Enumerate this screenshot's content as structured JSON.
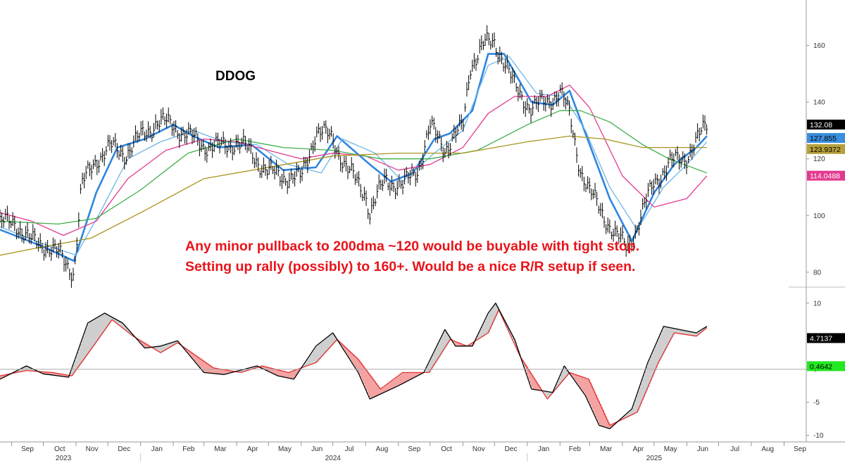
{
  "chart_data": {
    "type": "line",
    "title": "DDOG",
    "annotations": [
      "Any minor pullback to 200dma ~120 would be buyable with tight stop.",
      "Setting up rally (possibly) to 160+. Would be a nice R/R setup if seen."
    ],
    "x_months": [
      "Sep",
      "Oct",
      "Nov",
      "Dec",
      "Jan",
      "Feb",
      "Mar",
      "Apr",
      "May",
      "Jun",
      "Jul",
      "Aug",
      "Sep",
      "Oct",
      "Nov",
      "Dec",
      "Jan",
      "Feb",
      "Mar",
      "Apr",
      "May",
      "Jun",
      "Jul",
      "Aug",
      "Sep"
    ],
    "x_years": [
      "2023",
      "2024",
      "2025"
    ],
    "grid": false,
    "panels": [
      {
        "name": "price",
        "ylim": [
          76,
          176
        ],
        "y_ticks": [
          80,
          100,
          120,
          140,
          160
        ],
        "series": [
          {
            "type": "ohlc_close",
            "color": "#000000",
            "x": [
              "2023-08-21",
              "2023-09-04",
              "2023-09-18",
              "2023-10-02",
              "2023-10-16",
              "2023-10-30",
              "2023-11-06",
              "2023-11-20",
              "2023-12-04",
              "2023-12-18",
              "2024-01-02",
              "2024-01-16",
              "2024-02-01",
              "2024-02-15",
              "2024-03-01",
              "2024-03-15",
              "2024-04-01",
              "2024-04-15",
              "2024-05-01",
              "2024-05-15",
              "2024-06-01",
              "2024-06-15",
              "2024-07-01",
              "2024-07-15",
              "2024-08-01",
              "2024-08-05",
              "2024-08-20",
              "2024-09-05",
              "2024-09-20",
              "2024-10-01",
              "2024-10-15",
              "2024-11-01",
              "2024-11-08",
              "2024-11-20",
              "2024-12-01",
              "2024-12-10",
              "2024-12-20",
              "2025-01-05",
              "2025-01-20",
              "2025-02-01",
              "2025-02-10",
              "2025-02-20",
              "2025-03-01",
              "2025-03-15",
              "2025-03-25",
              "2025-04-05",
              "2025-04-15",
              "2025-05-01",
              "2025-05-15",
              "2025-06-01",
              "2025-06-10",
              "2025-06-20"
            ],
            "values": [
              97,
              98,
              91,
              90,
              86,
              80,
              110,
              120,
              124,
              122,
              128,
              133,
              132,
              128,
              125,
              124,
              126,
              122,
              115,
              114,
              113,
              130,
              127,
              116,
              108,
              101,
              113,
              110,
              117,
              131,
              124,
              131,
              153,
              160,
              161,
              155,
              145,
              138,
              140,
              144,
              135,
              117,
              108,
              100,
              93,
              89,
              96,
              112,
              118,
              121,
              126,
              132
            ]
          },
          {
            "type": "line",
            "color": "#2e86e0",
            "x": [
              "2023-08-21",
              "2023-10-01",
              "2023-10-30",
              "2023-11-20",
              "2023-12-10",
              "2024-01-05",
              "2024-02-01",
              "2024-02-20",
              "2024-03-15",
              "2024-04-15",
              "2024-05-15",
              "2024-06-15",
              "2024-07-05",
              "2024-08-05",
              "2024-08-25",
              "2024-09-15",
              "2024-10-05",
              "2024-10-20",
              "2024-11-10",
              "2024-11-25",
              "2024-12-10",
              "2025-01-05",
              "2025-01-25",
              "2025-02-10",
              "2025-03-01",
              "2025-03-20",
              "2025-04-10",
              "2025-05-01",
              "2025-05-20",
              "2025-06-10",
              "2025-06-20"
            ],
            "values": [
              95,
              89,
              84,
              108,
              124,
              127,
              132,
              128,
              124,
              125,
              116,
              117,
              128,
              118,
              112,
              115,
              127,
              129,
              137,
              157,
              157,
              140,
              139,
              144,
              125,
              106,
              91,
              108,
              118,
              124,
              128
            ]
          },
          {
            "type": "line",
            "color": "#6fb6e8",
            "x": [
              "2023-08-21",
              "2023-10-01",
              "2023-11-01",
              "2023-11-25",
              "2023-12-20",
              "2024-01-20",
              "2024-02-20",
              "2024-03-20",
              "2024-04-20",
              "2024-05-20",
              "2024-06-20",
              "2024-07-10",
              "2024-08-10",
              "2024-09-05",
              "2024-10-05",
              "2024-11-01",
              "2024-11-25",
              "2024-12-15",
              "2025-01-10",
              "2025-02-05",
              "2025-02-25",
              "2025-03-20",
              "2025-04-15",
              "2025-05-10",
              "2025-06-01",
              "2025-06-20"
            ],
            "values": [
              96,
              90,
              86,
              102,
              120,
              126,
              130,
              126,
              125,
              118,
              115,
              127,
              122,
              112,
              122,
              130,
              153,
              156,
              143,
              142,
              130,
              110,
              95,
              110,
              118,
              126
            ]
          },
          {
            "type": "line",
            "color": "#e33a8f",
            "x": [
              "2023-08-21",
              "2023-09-20",
              "2023-10-20",
              "2023-11-20",
              "2023-12-20",
              "2024-01-25",
              "2024-03-01",
              "2024-04-01",
              "2024-05-01",
              "2024-06-01",
              "2024-07-01",
              "2024-08-01",
              "2024-09-01",
              "2024-10-01",
              "2024-11-01",
              "2024-11-25",
              "2024-12-20",
              "2025-01-20",
              "2025-02-10",
              "2025-03-01",
              "2025-04-01",
              "2025-05-01",
              "2025-06-01",
              "2025-06-20"
            ],
            "values": [
              101,
              98,
              93,
              98,
              113,
              123,
              127,
              126,
              123,
              120,
              122,
              121,
              116,
              118,
              124,
              136,
              142,
              142,
              146,
              138,
              114,
              103,
              106,
              114
            ]
          },
          {
            "type": "line",
            "color": "#3fae49",
            "x": [
              "2023-08-21",
              "2023-10-15",
              "2023-11-20",
              "2024-01-01",
              "2024-02-15",
              "2024-04-01",
              "2024-05-15",
              "2024-07-01",
              "2024-08-15",
              "2024-10-01",
              "2024-11-15",
              "2025-01-01",
              "2025-02-01",
              "2025-02-20",
              "2025-03-20",
              "2025-04-20",
              "2025-05-15",
              "2025-06-20"
            ],
            "values": [
              98,
              97,
              99,
              109,
              122,
              127,
              124,
              123,
              120,
              120,
              123,
              132,
              137,
              137,
              133,
              125,
              120,
              115
            ]
          },
          {
            "type": "line",
            "color": "#a89520",
            "x": [
              "2023-08-21",
              "2023-10-01",
              "2023-11-15",
              "2024-01-01",
              "2024-03-01",
              "2024-05-01",
              "2024-07-01",
              "2024-09-01",
              "2024-11-01",
              "2025-01-01",
              "2025-02-10",
              "2025-03-15",
              "2025-04-20",
              "2025-06-20"
            ],
            "values": [
              86,
              89,
              92,
              101,
              113,
              117,
              121,
              122,
              122,
              126,
              128,
              127,
              124,
              124
            ]
          }
        ],
        "last_value_tags": [
          {
            "label": "132.08",
            "bg": "#000000",
            "fg": "#ffffff",
            "value": 132.08
          },
          {
            "label": "127.855",
            "bg": "#3a8ede",
            "fg": "#000000",
            "value": 127.855
          },
          {
            "label": "123.9372",
            "bg": "#b5a03a",
            "fg": "#000000",
            "value": 123.9372
          },
          {
            "label": "114.0488",
            "bg": "#e33a8f",
            "fg": "#ffffff",
            "value": 114.0488
          }
        ]
      },
      {
        "name": "oscillator",
        "ylim": [
          -11,
          12
        ],
        "y_ticks": [
          -10,
          -5,
          0,
          5,
          10
        ],
        "reference_line": 0,
        "series": [
          {
            "type": "line",
            "color": "#000000",
            "x": [
              "2023-08-21",
              "2023-09-15",
              "2023-10-01",
              "2023-10-25",
              "2023-11-12",
              "2023-11-28",
              "2023-12-15",
              "2024-01-05",
              "2024-01-20",
              "2024-02-05",
              "2024-03-01",
              "2024-03-20",
              "2024-04-20",
              "2024-05-10",
              "2024-05-25",
              "2024-06-15",
              "2024-07-01",
              "2024-07-25",
              "2024-08-05",
              "2024-09-01",
              "2024-09-25",
              "2024-10-15",
              "2024-10-25",
              "2024-11-10",
              "2024-11-25",
              "2024-12-02",
              "2024-12-20",
              "2025-01-05",
              "2025-01-25",
              "2025-02-05",
              "2025-02-25",
              "2025-03-10",
              "2025-03-20",
              "2025-04-10",
              "2025-04-25",
              "2025-05-10",
              "2025-05-25",
              "2025-06-10",
              "2025-06-20"
            ],
            "values": [
              -1.5,
              0.5,
              -0.7,
              -1.2,
              7.0,
              8.5,
              7.0,
              3.2,
              3.5,
              4.3,
              -0.5,
              -0.8,
              0.5,
              -1.0,
              -1.5,
              3.5,
              5.5,
              -0.5,
              -4.5,
              -2.5,
              -0.5,
              6.0,
              3.5,
              3.5,
              8.5,
              10.0,
              4.5,
              -3.0,
              -3.5,
              0.5,
              -4.0,
              -8.5,
              -9.0,
              -6.0,
              1.0,
              6.5,
              6.0,
              5.5,
              6.5
            ]
          },
          {
            "type": "line",
            "color": "#e33030",
            "x": [
              "2023-08-21",
              "2023-09-15",
              "2023-10-10",
              "2023-10-28",
              "2023-11-15",
              "2023-12-05",
              "2023-12-25",
              "2024-01-20",
              "2024-02-05",
              "2024-03-10",
              "2024-04-05",
              "2024-04-25",
              "2024-05-20",
              "2024-06-15",
              "2024-07-05",
              "2024-07-25",
              "2024-08-15",
              "2024-09-05",
              "2024-09-30",
              "2024-10-20",
              "2024-11-05",
              "2024-11-25",
              "2024-12-05",
              "2024-12-25",
              "2025-01-20",
              "2025-02-10",
              "2025-02-28",
              "2025-03-20",
              "2025-04-15",
              "2025-05-05",
              "2025-05-20",
              "2025-06-10",
              "2025-06-20"
            ],
            "values": [
              -1.0,
              -0.2,
              -0.5,
              -1.0,
              3.0,
              7.5,
              5.0,
              2.5,
              4.0,
              0.2,
              -0.5,
              0.5,
              -0.5,
              1.0,
              4.5,
              1.5,
              -3.0,
              -0.5,
              -0.5,
              4.5,
              3.5,
              5.5,
              9.0,
              2.0,
              -4.5,
              -0.5,
              -1.5,
              -8.5,
              -6.5,
              1.0,
              5.5,
              5.0,
              6.3
            ]
          }
        ],
        "last_value_tags": [
          {
            "label": "4.7137",
            "bg": "#000000",
            "fg": "#ffffff",
            "value": 4.7137
          },
          {
            "label": "0.4642",
            "bg": "#22e822",
            "fg": "#000000",
            "value": 0.4642
          }
        ]
      }
    ]
  }
}
